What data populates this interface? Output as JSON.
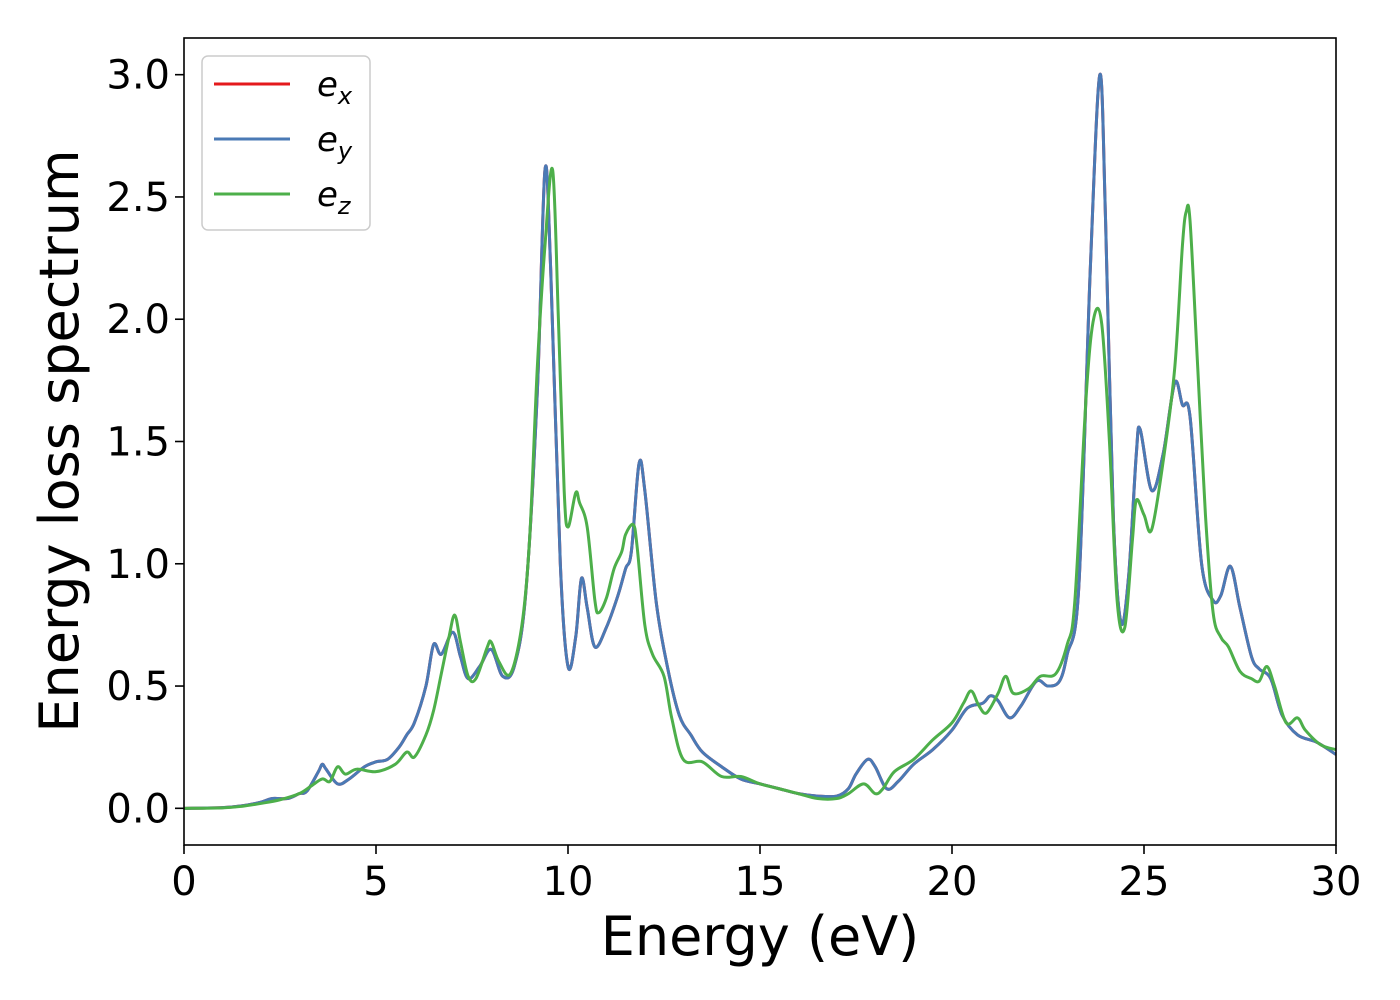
{
  "chart_data": {
    "type": "line",
    "title": "",
    "xlabel": "Energy (eV)",
    "ylabel": "Energy loss spectrum",
    "xlim": [
      0,
      30
    ],
    "ylim": [
      -0.15,
      3.15
    ],
    "xticks": [
      0,
      5,
      10,
      15,
      20,
      25,
      30
    ],
    "yticks": [
      0.0,
      0.5,
      1.0,
      1.5,
      2.0,
      2.5,
      3.0
    ],
    "xtick_labels": [
      "0",
      "5",
      "10",
      "15",
      "20",
      "25",
      "30"
    ],
    "ytick_labels": [
      "0.0",
      "0.5",
      "1.0",
      "1.5",
      "2.0",
      "2.5",
      "3.0"
    ],
    "grid": false,
    "legend_position": "top-left",
    "series": [
      {
        "name": "e_x",
        "label_base": "e",
        "label_sub": "x",
        "color": "#e41a1c",
        "points": [
          [
            0,
            0
          ],
          [
            1,
            0.003
          ],
          [
            1.5,
            0.01
          ],
          [
            2,
            0.025
          ],
          [
            2.3,
            0.04
          ],
          [
            2.7,
            0.04
          ],
          [
            3,
            0.06
          ],
          [
            3.2,
            0.07
          ],
          [
            3.5,
            0.15
          ],
          [
            3.6,
            0.18
          ],
          [
            3.7,
            0.16
          ],
          [
            4,
            0.1
          ],
          [
            4.3,
            0.12
          ],
          [
            4.7,
            0.17
          ],
          [
            5,
            0.19
          ],
          [
            5.3,
            0.2
          ],
          [
            5.6,
            0.25
          ],
          [
            5.8,
            0.3
          ],
          [
            6,
            0.35
          ],
          [
            6.3,
            0.5
          ],
          [
            6.5,
            0.67
          ],
          [
            6.7,
            0.63
          ],
          [
            7,
            0.72
          ],
          [
            7.2,
            0.62
          ],
          [
            7.4,
            0.53
          ],
          [
            7.7,
            0.58
          ],
          [
            8,
            0.65
          ],
          [
            8.3,
            0.54
          ],
          [
            8.6,
            0.58
          ],
          [
            8.9,
            0.88
          ],
          [
            9.2,
            1.7
          ],
          [
            9.4,
            2.61
          ],
          [
            9.55,
            2.2
          ],
          [
            9.8,
            1.0
          ],
          [
            10,
            0.58
          ],
          [
            10.2,
            0.7
          ],
          [
            10.35,
            0.94
          ],
          [
            10.5,
            0.82
          ],
          [
            10.7,
            0.66
          ],
          [
            11,
            0.74
          ],
          [
            11.3,
            0.87
          ],
          [
            11.5,
            0.98
          ],
          [
            11.65,
            1.05
          ],
          [
            11.85,
            1.41
          ],
          [
            12,
            1.3
          ],
          [
            12.3,
            0.84
          ],
          [
            12.6,
            0.57
          ],
          [
            12.9,
            0.38
          ],
          [
            13.2,
            0.3
          ],
          [
            13.5,
            0.23
          ],
          [
            14,
            0.17
          ],
          [
            14.5,
            0.12
          ],
          [
            15,
            0.1
          ],
          [
            15.5,
            0.08
          ],
          [
            16,
            0.06
          ],
          [
            16.5,
            0.05
          ],
          [
            17,
            0.05
          ],
          [
            17.3,
            0.08
          ],
          [
            17.5,
            0.14
          ],
          [
            17.8,
            0.2
          ],
          [
            18,
            0.17
          ],
          [
            18.3,
            0.08
          ],
          [
            18.6,
            0.11
          ],
          [
            19,
            0.18
          ],
          [
            19.5,
            0.24
          ],
          [
            20,
            0.32
          ],
          [
            20.4,
            0.41
          ],
          [
            20.8,
            0.43
          ],
          [
            21,
            0.46
          ],
          [
            21.2,
            0.44
          ],
          [
            21.5,
            0.37
          ],
          [
            21.8,
            0.42
          ],
          [
            22.2,
            0.52
          ],
          [
            22.5,
            0.5
          ],
          [
            22.8,
            0.52
          ],
          [
            23,
            0.63
          ],
          [
            23.3,
            0.9
          ],
          [
            23.6,
            2.2
          ],
          [
            23.85,
            3.0
          ],
          [
            24,
            2.4
          ],
          [
            24.2,
            1.2
          ],
          [
            24.4,
            0.76
          ],
          [
            24.6,
            0.95
          ],
          [
            24.8,
            1.45
          ],
          [
            24.9,
            1.55
          ],
          [
            25.2,
            1.3
          ],
          [
            25.5,
            1.45
          ],
          [
            25.8,
            1.74
          ],
          [
            26,
            1.65
          ],
          [
            26.2,
            1.6
          ],
          [
            26.5,
            1.0
          ],
          [
            26.8,
            0.85
          ],
          [
            27,
            0.87
          ],
          [
            27.25,
            0.99
          ],
          [
            27.5,
            0.82
          ],
          [
            27.8,
            0.62
          ],
          [
            28,
            0.57
          ],
          [
            28.3,
            0.53
          ],
          [
            28.6,
            0.38
          ],
          [
            29,
            0.3
          ],
          [
            29.5,
            0.27
          ],
          [
            30,
            0.22
          ]
        ]
      },
      {
        "name": "e_y",
        "label_base": "e",
        "label_sub": "y",
        "color": "#4a7ab5",
        "points": [
          [
            0,
            0
          ],
          [
            1,
            0.003
          ],
          [
            1.5,
            0.01
          ],
          [
            2,
            0.025
          ],
          [
            2.3,
            0.04
          ],
          [
            2.7,
            0.04
          ],
          [
            3,
            0.06
          ],
          [
            3.2,
            0.07
          ],
          [
            3.5,
            0.15
          ],
          [
            3.6,
            0.18
          ],
          [
            3.7,
            0.16
          ],
          [
            4,
            0.1
          ],
          [
            4.3,
            0.12
          ],
          [
            4.7,
            0.17
          ],
          [
            5,
            0.19
          ],
          [
            5.3,
            0.2
          ],
          [
            5.6,
            0.25
          ],
          [
            5.8,
            0.3
          ],
          [
            6,
            0.35
          ],
          [
            6.3,
            0.5
          ],
          [
            6.5,
            0.67
          ],
          [
            6.7,
            0.63
          ],
          [
            7,
            0.72
          ],
          [
            7.2,
            0.62
          ],
          [
            7.4,
            0.53
          ],
          [
            7.7,
            0.58
          ],
          [
            8,
            0.65
          ],
          [
            8.3,
            0.54
          ],
          [
            8.6,
            0.58
          ],
          [
            8.9,
            0.88
          ],
          [
            9.2,
            1.7
          ],
          [
            9.4,
            2.61
          ],
          [
            9.55,
            2.2
          ],
          [
            9.8,
            1.0
          ],
          [
            10,
            0.58
          ],
          [
            10.2,
            0.7
          ],
          [
            10.35,
            0.94
          ],
          [
            10.5,
            0.82
          ],
          [
            10.7,
            0.66
          ],
          [
            11,
            0.74
          ],
          [
            11.3,
            0.87
          ],
          [
            11.5,
            0.98
          ],
          [
            11.65,
            1.05
          ],
          [
            11.85,
            1.41
          ],
          [
            12,
            1.3
          ],
          [
            12.3,
            0.84
          ],
          [
            12.6,
            0.57
          ],
          [
            12.9,
            0.38
          ],
          [
            13.2,
            0.3
          ],
          [
            13.5,
            0.23
          ],
          [
            14,
            0.17
          ],
          [
            14.5,
            0.12
          ],
          [
            15,
            0.1
          ],
          [
            15.5,
            0.08
          ],
          [
            16,
            0.06
          ],
          [
            16.5,
            0.05
          ],
          [
            17,
            0.05
          ],
          [
            17.3,
            0.08
          ],
          [
            17.5,
            0.14
          ],
          [
            17.8,
            0.2
          ],
          [
            18,
            0.17
          ],
          [
            18.3,
            0.08
          ],
          [
            18.6,
            0.11
          ],
          [
            19,
            0.18
          ],
          [
            19.5,
            0.24
          ],
          [
            20,
            0.32
          ],
          [
            20.4,
            0.41
          ],
          [
            20.8,
            0.43
          ],
          [
            21,
            0.46
          ],
          [
            21.2,
            0.44
          ],
          [
            21.5,
            0.37
          ],
          [
            21.8,
            0.42
          ],
          [
            22.2,
            0.52
          ],
          [
            22.5,
            0.5
          ],
          [
            22.8,
            0.52
          ],
          [
            23,
            0.63
          ],
          [
            23.3,
            0.9
          ],
          [
            23.6,
            2.2
          ],
          [
            23.85,
            3.0
          ],
          [
            24,
            2.4
          ],
          [
            24.2,
            1.2
          ],
          [
            24.4,
            0.76
          ],
          [
            24.6,
            0.95
          ],
          [
            24.8,
            1.45
          ],
          [
            24.9,
            1.55
          ],
          [
            25.2,
            1.3
          ],
          [
            25.5,
            1.45
          ],
          [
            25.8,
            1.74
          ],
          [
            26,
            1.65
          ],
          [
            26.2,
            1.6
          ],
          [
            26.5,
            1.0
          ],
          [
            26.8,
            0.85
          ],
          [
            27,
            0.87
          ],
          [
            27.25,
            0.99
          ],
          [
            27.5,
            0.82
          ],
          [
            27.8,
            0.62
          ],
          [
            28,
            0.57
          ],
          [
            28.3,
            0.53
          ],
          [
            28.6,
            0.38
          ],
          [
            29,
            0.3
          ],
          [
            29.5,
            0.27
          ],
          [
            30,
            0.22
          ]
        ]
      },
      {
        "name": "e_z",
        "label_base": "e",
        "label_sub": "z",
        "color": "#4daf4a",
        "points": [
          [
            0,
            0
          ],
          [
            1,
            0.002
          ],
          [
            1.5,
            0.008
          ],
          [
            2,
            0.02
          ],
          [
            2.5,
            0.035
          ],
          [
            3,
            0.06
          ],
          [
            3.3,
            0.09
          ],
          [
            3.6,
            0.12
          ],
          [
            3.8,
            0.11
          ],
          [
            4,
            0.17
          ],
          [
            4.2,
            0.14
          ],
          [
            4.5,
            0.16
          ],
          [
            5,
            0.15
          ],
          [
            5.5,
            0.18
          ],
          [
            5.8,
            0.23
          ],
          [
            6,
            0.21
          ],
          [
            6.3,
            0.3
          ],
          [
            6.5,
            0.4
          ],
          [
            6.7,
            0.55
          ],
          [
            6.9,
            0.7
          ],
          [
            7.05,
            0.79
          ],
          [
            7.2,
            0.68
          ],
          [
            7.4,
            0.54
          ],
          [
            7.6,
            0.53
          ],
          [
            7.9,
            0.66
          ],
          [
            8,
            0.68
          ],
          [
            8.2,
            0.6
          ],
          [
            8.5,
            0.55
          ],
          [
            8.8,
            0.75
          ],
          [
            9,
            1.1
          ],
          [
            9.2,
            1.8
          ],
          [
            9.4,
            2.3
          ],
          [
            9.6,
            2.61
          ],
          [
            9.75,
            2.0
          ],
          [
            9.9,
            1.3
          ],
          [
            10,
            1.15
          ],
          [
            10.2,
            1.29
          ],
          [
            10.3,
            1.25
          ],
          [
            10.5,
            1.15
          ],
          [
            10.7,
            0.85
          ],
          [
            10.8,
            0.8
          ],
          [
            11,
            0.86
          ],
          [
            11.2,
            0.98
          ],
          [
            11.4,
            1.05
          ],
          [
            11.5,
            1.12
          ],
          [
            11.7,
            1.16
          ],
          [
            11.8,
            1.07
          ],
          [
            12,
            0.75
          ],
          [
            12.2,
            0.63
          ],
          [
            12.5,
            0.54
          ],
          [
            12.7,
            0.37
          ],
          [
            13,
            0.2
          ],
          [
            13.5,
            0.19
          ],
          [
            14,
            0.13
          ],
          [
            14.5,
            0.13
          ],
          [
            15,
            0.1
          ],
          [
            15.5,
            0.08
          ],
          [
            16,
            0.06
          ],
          [
            16.5,
            0.04
          ],
          [
            17,
            0.04
          ],
          [
            17.3,
            0.06
          ],
          [
            17.7,
            0.1
          ],
          [
            18,
            0.06
          ],
          [
            18.2,
            0.08
          ],
          [
            18.5,
            0.15
          ],
          [
            19,
            0.2
          ],
          [
            19.5,
            0.28
          ],
          [
            20,
            0.35
          ],
          [
            20.3,
            0.43
          ],
          [
            20.5,
            0.48
          ],
          [
            20.7,
            0.42
          ],
          [
            20.9,
            0.39
          ],
          [
            21.2,
            0.47
          ],
          [
            21.4,
            0.54
          ],
          [
            21.6,
            0.47
          ],
          [
            22,
            0.49
          ],
          [
            22.3,
            0.54
          ],
          [
            22.7,
            0.55
          ],
          [
            23,
            0.67
          ],
          [
            23.2,
            0.85
          ],
          [
            23.5,
            1.7
          ],
          [
            23.7,
            2.01
          ],
          [
            23.9,
            1.98
          ],
          [
            24.1,
            1.5
          ],
          [
            24.3,
            0.85
          ],
          [
            24.5,
            0.74
          ],
          [
            24.7,
            1.1
          ],
          [
            24.8,
            1.26
          ],
          [
            25,
            1.2
          ],
          [
            25.2,
            1.14
          ],
          [
            25.5,
            1.42
          ],
          [
            25.8,
            1.8
          ],
          [
            26,
            2.3
          ],
          [
            26.1,
            2.44
          ],
          [
            26.2,
            2.4
          ],
          [
            26.4,
            1.8
          ],
          [
            26.6,
            1.2
          ],
          [
            26.8,
            0.8
          ],
          [
            27,
            0.7
          ],
          [
            27.2,
            0.66
          ],
          [
            27.5,
            0.56
          ],
          [
            27.8,
            0.53
          ],
          [
            28,
            0.52
          ],
          [
            28.2,
            0.58
          ],
          [
            28.4,
            0.5
          ],
          [
            28.7,
            0.35
          ],
          [
            29,
            0.37
          ],
          [
            29.2,
            0.32
          ],
          [
            29.6,
            0.26
          ],
          [
            30,
            0.24
          ]
        ]
      }
    ]
  }
}
